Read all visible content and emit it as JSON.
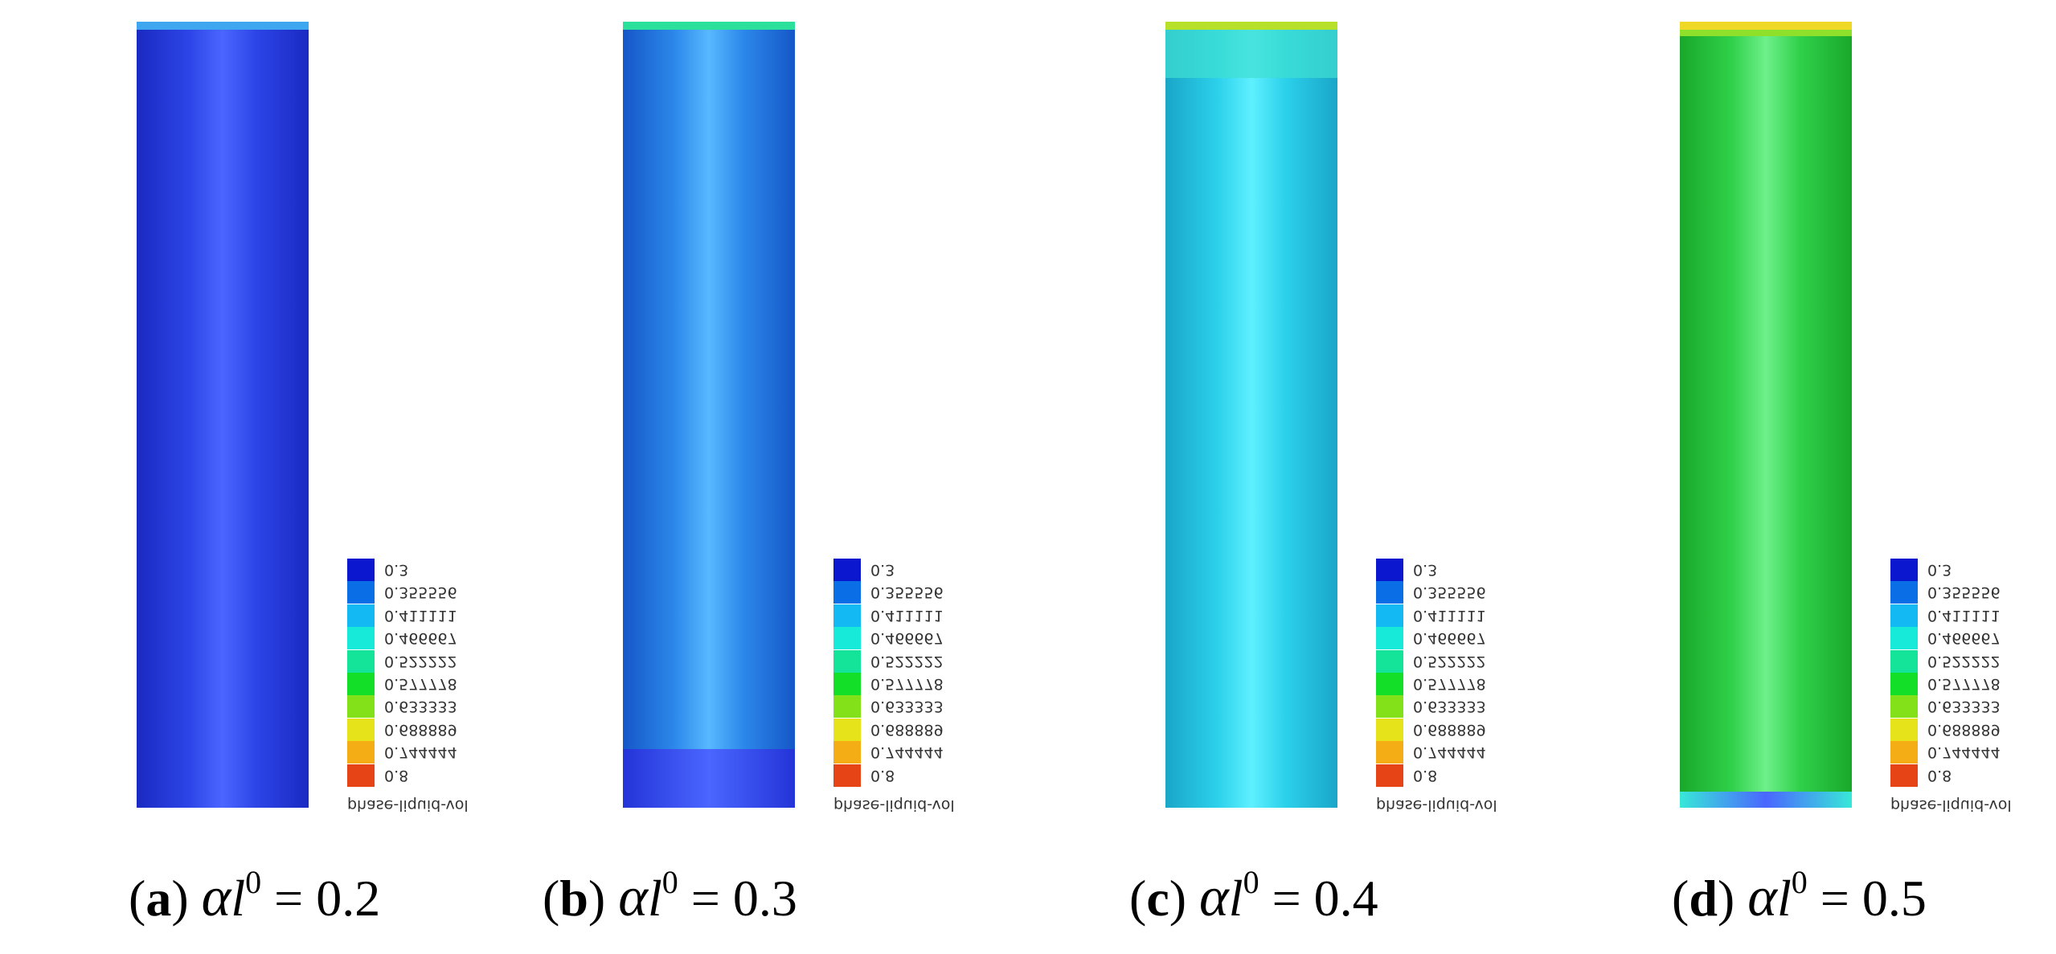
{
  "legend": {
    "values": [
      "0.3",
      "0.355556",
      "0.411111",
      "0.466667",
      "0.522222",
      "0.577778",
      "0.633333",
      "0.688889",
      "0.744444",
      "0.8"
    ],
    "colors": [
      "#0b16cf",
      "#0a6ee6",
      "#12b9f2",
      "#17ead8",
      "#14e39a",
      "#13de28",
      "#83e11a",
      "#e7e31b",
      "#f4ad14",
      "#e64417"
    ],
    "last_color": "#e01818",
    "title": "phase-liquid-vol"
  },
  "panels": [
    {
      "id": "a",
      "letter": "a",
      "symbol": "α",
      "subscript": "l",
      "sup": "0",
      "equals": " = 0.2",
      "body_gradient": [
        "#1a2ac2",
        "#2c44e6",
        "#4a66ff",
        "#2c44e6",
        "#1a2ac2"
      ],
      "cap_color": "#3fa7f0",
      "bottom_color": "#1a2ac2"
    },
    {
      "id": "b",
      "letter": "b",
      "symbol": "α",
      "subscript": "l",
      "sup": "0",
      "equals": " = 0.3",
      "body_gradient": [
        "#1557c8",
        "#2c88ea",
        "#58b8ff",
        "#2c88ea",
        "#1557c8"
      ],
      "cap_color": "#2ae09a",
      "bottom_color": "#2434d8"
    },
    {
      "id": "c",
      "letter": "c",
      "symbol": "α",
      "subscript": "l",
      "sup": "0",
      "equals": " = 0.4",
      "body_gradient": [
        "#1aa6c8",
        "#2bd0ea",
        "#5ef0ff",
        "#2bd0ea",
        "#1aa6c8"
      ],
      "cap_color": "#b6e02a",
      "bottom_color": "#1aa6c8"
    },
    {
      "id": "d",
      "letter": "d",
      "symbol": "α",
      "subscript": "l",
      "sup": "0",
      "equals": " = 0.5",
      "body_gradient": [
        "#1aa82a",
        "#2fd04a",
        "#6ef08a",
        "#2fd04a",
        "#1aa82a"
      ],
      "cap_color": "#f0d826",
      "bottom_color": "#38e8d8"
    }
  ]
}
